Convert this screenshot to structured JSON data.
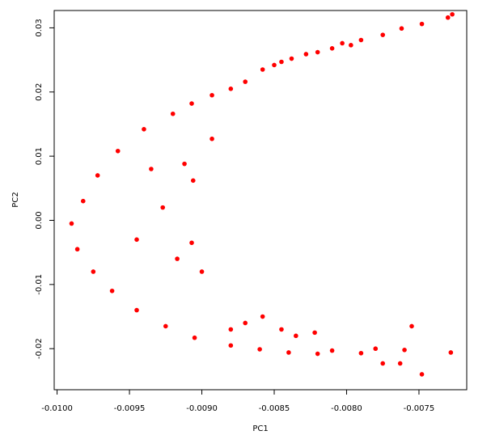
{
  "chart_data": {
    "type": "scatter",
    "title": "",
    "xlabel": "PC1",
    "ylabel": "PC2",
    "xlim": [
      -0.01002,
      -0.00717
    ],
    "ylim": [
      -0.0264,
      0.0327
    ],
    "x_ticks": [
      -0.01,
      -0.0095,
      -0.009,
      -0.0085,
      -0.008,
      -0.0075
    ],
    "x_tick_labels": [
      "-0.0100",
      "-0.0095",
      "-0.0090",
      "-0.0085",
      "-0.0080",
      "-0.0075"
    ],
    "y_ticks": [
      -0.02,
      -0.01,
      0.0,
      0.01,
      0.02,
      0.03
    ],
    "y_tick_labels": [
      "-0.02",
      "-0.01",
      "0.00",
      "0.01",
      "0.02",
      "0.03"
    ],
    "point_color": "#ff0000",
    "grid": false,
    "series": [
      {
        "points": [
          [
            -0.00727,
            0.0321
          ],
          [
            -0.0073,
            0.0316
          ],
          [
            -0.00748,
            0.0306
          ],
          [
            -0.00762,
            0.0299
          ],
          [
            -0.00775,
            0.0289
          ],
          [
            -0.0079,
            0.0281
          ],
          [
            -0.00797,
            0.0273
          ],
          [
            -0.00803,
            0.0276
          ],
          [
            -0.0081,
            0.0268
          ],
          [
            -0.0082,
            0.0262
          ],
          [
            -0.00828,
            0.0259
          ],
          [
            -0.00838,
            0.0252
          ],
          [
            -0.00845,
            0.0247
          ],
          [
            -0.0085,
            0.0242
          ],
          [
            -0.00858,
            0.0235
          ],
          [
            -0.0087,
            0.0216
          ],
          [
            -0.0088,
            0.0205
          ],
          [
            -0.00893,
            0.0195
          ],
          [
            -0.00907,
            0.0182
          ],
          [
            -0.0092,
            0.0166
          ],
          [
            -0.0094,
            0.0142
          ],
          [
            -0.00958,
            0.0108
          ],
          [
            -0.00972,
            0.007
          ],
          [
            -0.00982,
            0.003
          ],
          [
            -0.0099,
            -0.0005
          ],
          [
            -0.00986,
            -0.0045
          ],
          [
            -0.00975,
            -0.008
          ],
          [
            -0.00962,
            -0.011
          ],
          [
            -0.00945,
            -0.014
          ],
          [
            -0.00925,
            -0.0165
          ],
          [
            -0.00905,
            -0.0183
          ],
          [
            -0.0088,
            -0.0195
          ],
          [
            -0.0086,
            -0.0201
          ],
          [
            -0.0084,
            -0.0206
          ],
          [
            -0.0082,
            -0.0208
          ],
          [
            -0.0081,
            -0.0203
          ],
          [
            -0.0079,
            -0.0207
          ],
          [
            -0.0078,
            -0.02
          ],
          [
            -0.00775,
            -0.0223
          ],
          [
            -0.00763,
            -0.0223
          ],
          [
            -0.0076,
            -0.0202
          ],
          [
            -0.00755,
            -0.0165
          ],
          [
            -0.00748,
            -0.024
          ],
          [
            -0.00728,
            -0.0206
          ],
          [
            -0.00893,
            0.0127
          ],
          [
            -0.00906,
            0.0062
          ],
          [
            -0.00912,
            0.0088
          ],
          [
            -0.00907,
            -0.0035
          ],
          [
            -0.00927,
            0.002
          ],
          [
            -0.00935,
            0.008
          ],
          [
            -0.00917,
            -0.006
          ],
          [
            -0.00945,
            -0.003
          ],
          [
            -0.009,
            -0.008
          ],
          [
            -0.0088,
            -0.017
          ],
          [
            -0.0087,
            -0.016
          ],
          [
            -0.00858,
            -0.015
          ],
          [
            -0.00845,
            -0.017
          ],
          [
            -0.00835,
            -0.018
          ],
          [
            -0.00822,
            -0.0175
          ]
        ]
      }
    ]
  }
}
